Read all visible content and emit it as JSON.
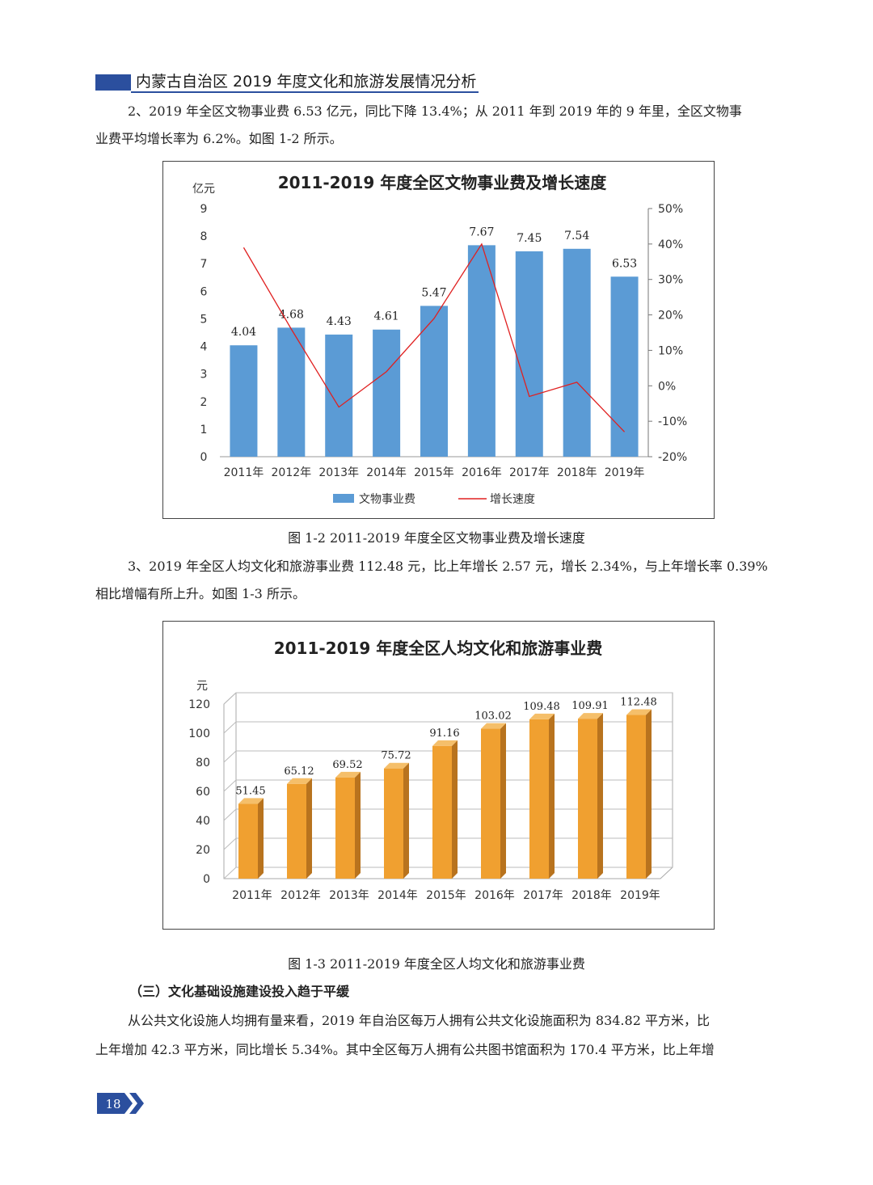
{
  "header": {
    "title": "内蒙古自治区 2019 年度文化和旅游发展情况分析"
  },
  "paragraphs": {
    "p2_line1": "2、2019 年全区文物事业费 6.53 亿元，同比下降 13.4%；从 2011 年到 2019 年的 9 年里，全区文物事",
    "p2_line2": "业费平均增长率为 6.2%。如图 1-2 所示。",
    "p3_line1": "3、2019 年全区人均文化和旅游事业费 112.48 元，比上年增长 2.57 元，增长 2.34%，与上年增长率 0.39%",
    "p3_line2": "相比增幅有所上升。如图 1-3 所示。",
    "p4_line1": "从公共文化设施人均拥有量来看，2019 年自治区每万人拥有公共文化设施面积为 834.82 平方米，比",
    "p4_line2": "上年增加 42.3 平方米，同比增长 5.34%。其中全区每万人拥有公共图书馆面积为 170.4 平方米，比上年增"
  },
  "section_title": "（三）文化基础设施建设投入趋于平缓",
  "caption1": "图 1-2   2011-2019 年度全区文物事业费及增长速度",
  "caption2": "图 1-3   2011-2019 年度全区人均文化和旅游事业费",
  "page_number": "18",
  "colors": {
    "bar_blue": "#5b9bd5",
    "line_red": "#e02020",
    "bar_orange": "#f0a030",
    "header_blue": "#2b4f9e"
  },
  "chart_data": [
    {
      "type": "bar",
      "title": "2011-2019 年度全区文物事业费及增长速度",
      "ylabel": "亿元",
      "categories": [
        "2011年",
        "2012年",
        "2013年",
        "2014年",
        "2015年",
        "2016年",
        "2017年",
        "2018年",
        "2019年"
      ],
      "series": [
        {
          "name": "文物事业费",
          "type": "bar",
          "axis": "left",
          "values": [
            4.04,
            4.68,
            4.43,
            4.61,
            5.47,
            7.67,
            7.45,
            7.54,
            6.53
          ],
          "labels": [
            "4.04",
            "4.68",
            "4.43",
            "4.61",
            "5.47",
            "7.67",
            "7.45",
            "7.54",
            "6.53"
          ]
        },
        {
          "name": "增长速度",
          "type": "line",
          "axis": "right",
          "values": [
            39,
            16,
            -6,
            4,
            19,
            40,
            -3,
            1,
            -13
          ]
        }
      ],
      "ylim": [
        0,
        9
      ],
      "yticks": [
        "0",
        "1",
        "2",
        "3",
        "4",
        "5",
        "6",
        "7",
        "8",
        "9"
      ],
      "y2lim": [
        -20,
        50
      ],
      "y2ticks": [
        "-20%",
        "-10%",
        "0%",
        "10%",
        "20%",
        "30%",
        "40%",
        "50%"
      ],
      "legend_position": "bottom"
    },
    {
      "type": "bar",
      "title": "2011-2019 年度全区人均文化和旅游事业费",
      "ylabel": "元",
      "categories": [
        "2011年",
        "2012年",
        "2013年",
        "2014年",
        "2015年",
        "2016年",
        "2017年",
        "2018年",
        "2019年"
      ],
      "values": [
        51.45,
        65.12,
        69.52,
        75.72,
        91.16,
        103.02,
        109.48,
        109.91,
        112.48
      ],
      "labels": [
        "51.45",
        "65.12",
        "69.52",
        "75.72",
        "91.16",
        "103.02",
        "109.48",
        "109.91",
        "112.48"
      ],
      "ylim": [
        0,
        120
      ],
      "yticks": [
        "0",
        "20",
        "40",
        "60",
        "80",
        "100",
        "120"
      ],
      "style": "3d"
    }
  ]
}
